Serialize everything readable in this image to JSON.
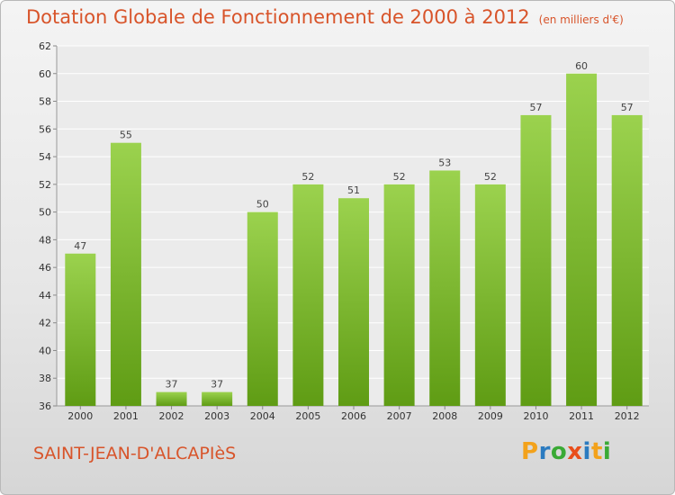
{
  "title": "Dotation Globale de Fonctionnement de 2000 à 2012",
  "unit": "(en milliers d'€)",
  "city": "SAINT-JEAN-D'ALCAPIèS",
  "logo": {
    "text": "Proxiti",
    "colors": [
      "#f3a21b",
      "#2b7bc0",
      "#3aaa35",
      "#e94e1b",
      "#2b7bc0",
      "#f3a21b",
      "#3aaa35"
    ]
  },
  "colors": {
    "bar_light": "#9bd24e",
    "bar_dark": "#5f9c14",
    "title": "#d8542a"
  },
  "chart_data": {
    "type": "bar",
    "categories": [
      "2000",
      "2001",
      "2002",
      "2003",
      "2004",
      "2005",
      "2006",
      "2007",
      "2008",
      "2009",
      "2010",
      "2011",
      "2012"
    ],
    "values": [
      47,
      55,
      37,
      37,
      50,
      52,
      51,
      52,
      53,
      52,
      57,
      60,
      57
    ],
    "title": "Dotation Globale de Fonctionnement de 2000 à 2012",
    "xlabel": "",
    "ylabel": "",
    "ylim": [
      36,
      62
    ],
    "yticks": [
      36,
      38,
      40,
      42,
      44,
      46,
      48,
      50,
      52,
      54,
      56,
      58,
      60,
      62
    ],
    "grid": true,
    "legend": "none"
  }
}
